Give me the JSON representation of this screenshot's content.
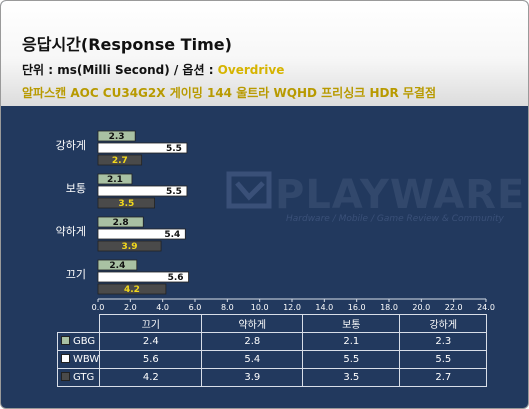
{
  "header": {
    "title": "응답시간(Response Time)",
    "unit_prefix": "단위 : ms(Milli Second) / 옵션 : ",
    "unit_option": "Overdrive",
    "model": "알파스캔 AOC CU34G2X 게이밍 144 울트라 WQHD 프리싱크 HDR 무결점"
  },
  "watermark": {
    "brand": "PLAYWARES",
    "tagline": "Hardware / Mobile / Game Review & Community"
  },
  "chart_data": {
    "type": "bar",
    "orientation": "horizontal",
    "categories": [
      "끄기",
      "약하게",
      "보통",
      "강하게"
    ],
    "series": [
      {
        "name": "GBG",
        "values": [
          2.4,
          2.8,
          2.1,
          2.3
        ],
        "color": "#a9c1a3"
      },
      {
        "name": "WBW",
        "values": [
          5.6,
          5.4,
          5.5,
          5.5
        ],
        "color": "#ffffff"
      },
      {
        "name": "GTG",
        "values": [
          4.2,
          3.9,
          3.5,
          2.7
        ],
        "color": "#4a4a4a"
      }
    ],
    "xlim": [
      0,
      24
    ],
    "x_ticks": [
      "0.0",
      "2.0",
      "4.0",
      "6.0",
      "8.0",
      "10.0",
      "12.0",
      "14.0",
      "16.0",
      "18.0",
      "20.0",
      "22.0",
      "24.0"
    ],
    "grid": false,
    "legend": "data-table"
  },
  "colors": {
    "background": "#22395e",
    "gtg_label": "#f2d81c",
    "label_dark": "#111111"
  }
}
